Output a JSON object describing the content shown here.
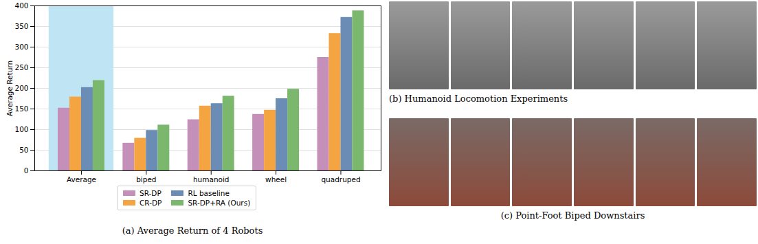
{
  "chart_data": {
    "type": "bar",
    "title": "(a) Average Return of 4 Robots",
    "ylabel": "Average Return",
    "categories": [
      "Average",
      "biped",
      "humanoid",
      "wheel",
      "quadruped"
    ],
    "series": [
      {
        "name": "SR-DP",
        "color": "#c48fb8",
        "values": [
          152,
          67,
          124,
          137,
          275
        ]
      },
      {
        "name": "CR-DP",
        "color": "#f5a442",
        "values": [
          179,
          79,
          157,
          147,
          333
        ]
      },
      {
        "name": "RL baseline",
        "color": "#6b8db5",
        "values": [
          202,
          98,
          163,
          175,
          372
        ]
      },
      {
        "name": "SR-DP+RA (Ours)",
        "color": "#7cb76e",
        "values": [
          219,
          111,
          181,
          198,
          388
        ]
      }
    ],
    "ylim": [
      0,
      400
    ],
    "yticks": [
      0,
      50,
      100,
      150,
      200,
      250,
      300,
      350,
      400
    ],
    "grid": true,
    "legend": "bottom"
  },
  "panels": [
    {
      "caption": "(b) Humanoid Locomotion Experiments"
    },
    {
      "caption": "(c) Point-Foot Biped Downstairs"
    }
  ]
}
